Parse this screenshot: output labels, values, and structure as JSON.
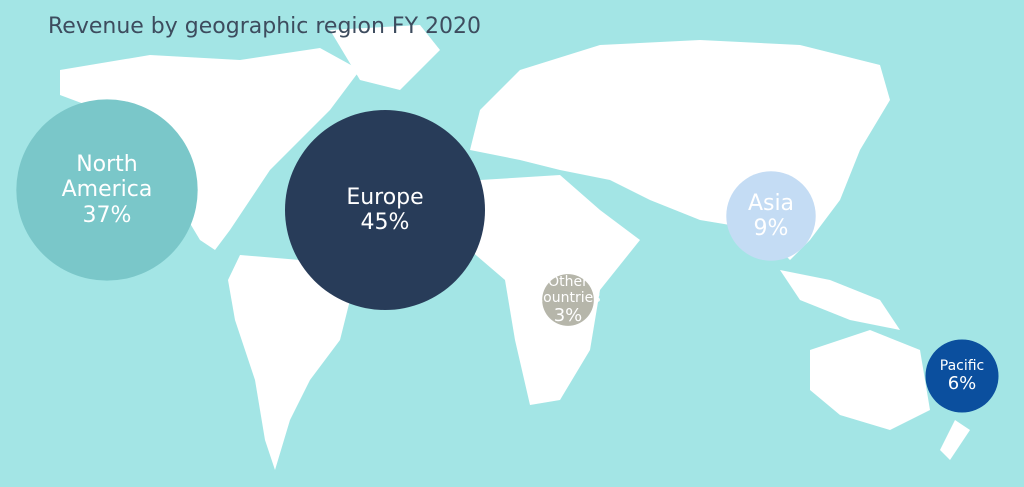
{
  "chart_data": {
    "type": "bubble",
    "title": "Revenue by geographic region FY 2020",
    "categories": [
      "North America",
      "Europe",
      "Other countries",
      "Asia",
      "Pacific"
    ],
    "values": [
      37,
      45,
      3,
      9,
      6
    ],
    "value_labels": [
      "37%",
      "45%",
      "3%",
      "9%",
      "6%"
    ],
    "colors": [
      "#7ac7c9",
      "#283c59",
      "#b6b6aa",
      "#c4dcf4",
      "#0b4f9e"
    ]
  }
}
